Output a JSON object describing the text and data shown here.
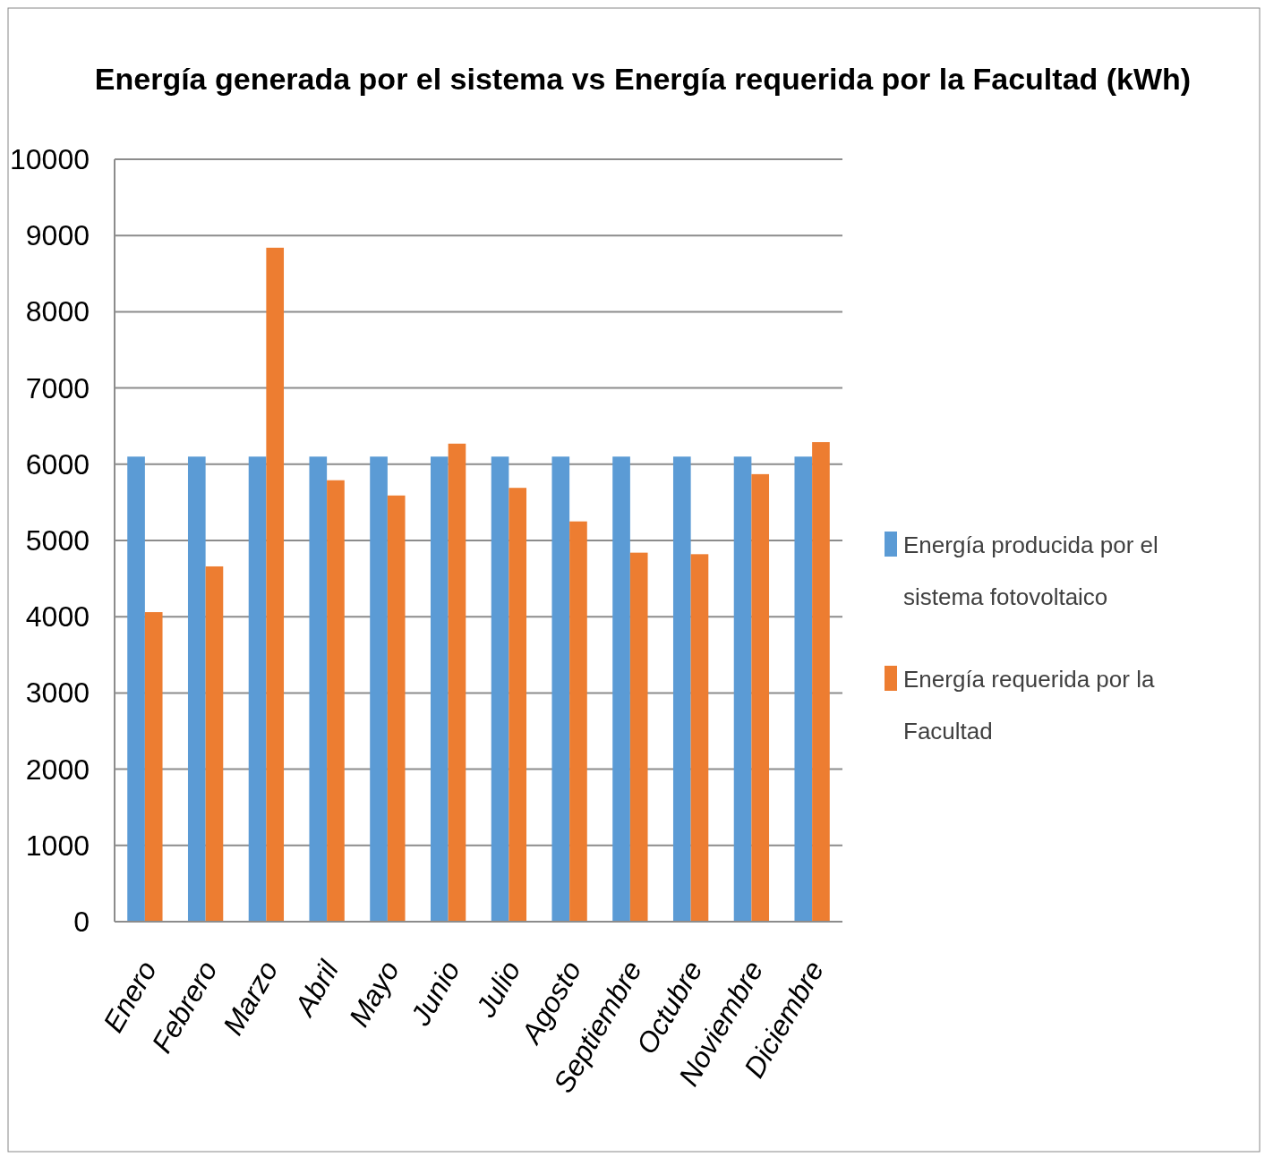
{
  "chart_data": {
    "type": "bar",
    "title": "Energía generada por el sistema vs Energía requerida por la Facultad (kWh)",
    "categories": [
      "Enero",
      "Febrero",
      "Marzo",
      "Abril",
      "Mayo",
      "Junio",
      "Julio",
      "Agosto",
      "Septiembre",
      "Octubre",
      "Noviembre",
      "Diciembre"
    ],
    "series": [
      {
        "name": "Energía producida por el sistema fotovoltaico",
        "color": "#5b9bd5",
        "values": [
          6100,
          6100,
          6100,
          6100,
          6100,
          6100,
          6100,
          6100,
          6100,
          6100,
          6100,
          6100
        ]
      },
      {
        "name": "Energía requerida por la Facultad",
        "color": "#ed7d31",
        "values": [
          4060,
          4660,
          8840,
          5790,
          5590,
          6270,
          5690,
          5250,
          4840,
          4820,
          5870,
          6290
        ]
      }
    ],
    "ylim": [
      0,
      10000
    ],
    "yticks": [
      0,
      1000,
      2000,
      3000,
      4000,
      5000,
      6000,
      7000,
      8000,
      9000,
      10000
    ],
    "grid": "y",
    "legend": "right"
  }
}
